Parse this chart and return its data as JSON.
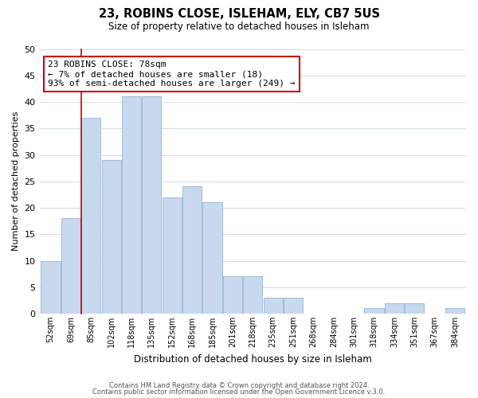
{
  "title": "23, ROBINS CLOSE, ISLEHAM, ELY, CB7 5US",
  "subtitle": "Size of property relative to detached houses in Isleham",
  "xlabel": "Distribution of detached houses by size in Isleham",
  "ylabel": "Number of detached properties",
  "bar_color": "#c8d9ee",
  "bar_edgecolor": "#a0bcd8",
  "bins": [
    "52sqm",
    "69sqm",
    "85sqm",
    "102sqm",
    "118sqm",
    "135sqm",
    "152sqm",
    "168sqm",
    "185sqm",
    "201sqm",
    "218sqm",
    "235sqm",
    "251sqm",
    "268sqm",
    "284sqm",
    "301sqm",
    "318sqm",
    "334sqm",
    "351sqm",
    "367sqm",
    "384sqm"
  ],
  "values": [
    10,
    18,
    37,
    29,
    41,
    41,
    22,
    24,
    21,
    7,
    7,
    3,
    3,
    0,
    0,
    0,
    1,
    2,
    2,
    0,
    1
  ],
  "ylim": [
    0,
    50
  ],
  "yticks": [
    0,
    5,
    10,
    15,
    20,
    25,
    30,
    35,
    40,
    45,
    50
  ],
  "vline_color": "#cc0000",
  "annotation_text": "23 ROBINS CLOSE: 78sqm\n← 7% of detached houses are smaller (18)\n93% of semi-detached houses are larger (249) →",
  "annotation_box_color": "#ffffff",
  "annotation_box_edgecolor": "#cc0000",
  "footer1": "Contains HM Land Registry data © Crown copyright and database right 2024.",
  "footer2": "Contains public sector information licensed under the Open Government Licence v.3.0.",
  "background_color": "#ffffff",
  "grid_color": "#d0dce8"
}
